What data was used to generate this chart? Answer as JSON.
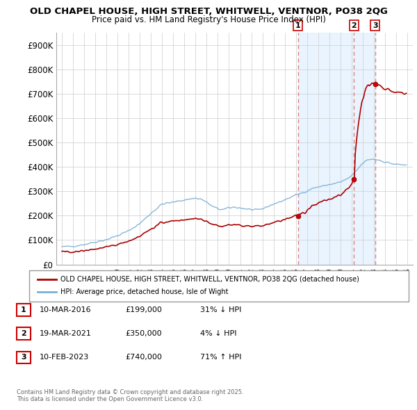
{
  "title_line1": "OLD CHAPEL HOUSE, HIGH STREET, WHITWELL, VENTNOR, PO38 2QG",
  "title_line2": "Price paid vs. HM Land Registry's House Price Index (HPI)",
  "background_color": "#ffffff",
  "grid_color": "#cccccc",
  "sale_color": "#aa0000",
  "hpi_color": "#7ab0d4",
  "shade_color": "#ddeeff",
  "sale_dates": [
    2016.19,
    2021.21,
    2023.12
  ],
  "sale_prices": [
    199000,
    350000,
    740000
  ],
  "sale_labels": [
    "1",
    "2",
    "3"
  ],
  "vline_color": "#e08080",
  "ylim": [
    0,
    950000
  ],
  "yticks": [
    0,
    100000,
    200000,
    300000,
    400000,
    500000,
    600000,
    700000,
    800000,
    900000
  ],
  "ytick_labels": [
    "£0",
    "£100K",
    "£200K",
    "£300K",
    "£400K",
    "£500K",
    "£600K",
    "£700K",
    "£800K",
    "£900K"
  ],
  "xlim_min": 1994.5,
  "xlim_max": 2026.5,
  "legend_entry1": "OLD CHAPEL HOUSE, HIGH STREET, WHITWELL, VENTNOR, PO38 2QG (detached house)",
  "legend_entry2": "HPI: Average price, detached house, Isle of Wight",
  "table_rows": [
    [
      "1",
      "10-MAR-2016",
      "£199,000",
      "31% ↓ HPI"
    ],
    [
      "2",
      "19-MAR-2021",
      "£350,000",
      "4% ↓ HPI"
    ],
    [
      "3",
      "10-FEB-2023",
      "£740,000",
      "71% ↑ HPI"
    ]
  ],
  "footnote": "Contains HM Land Registry data © Crown copyright and database right 2025.\nThis data is licensed under the Open Government Licence v3.0."
}
